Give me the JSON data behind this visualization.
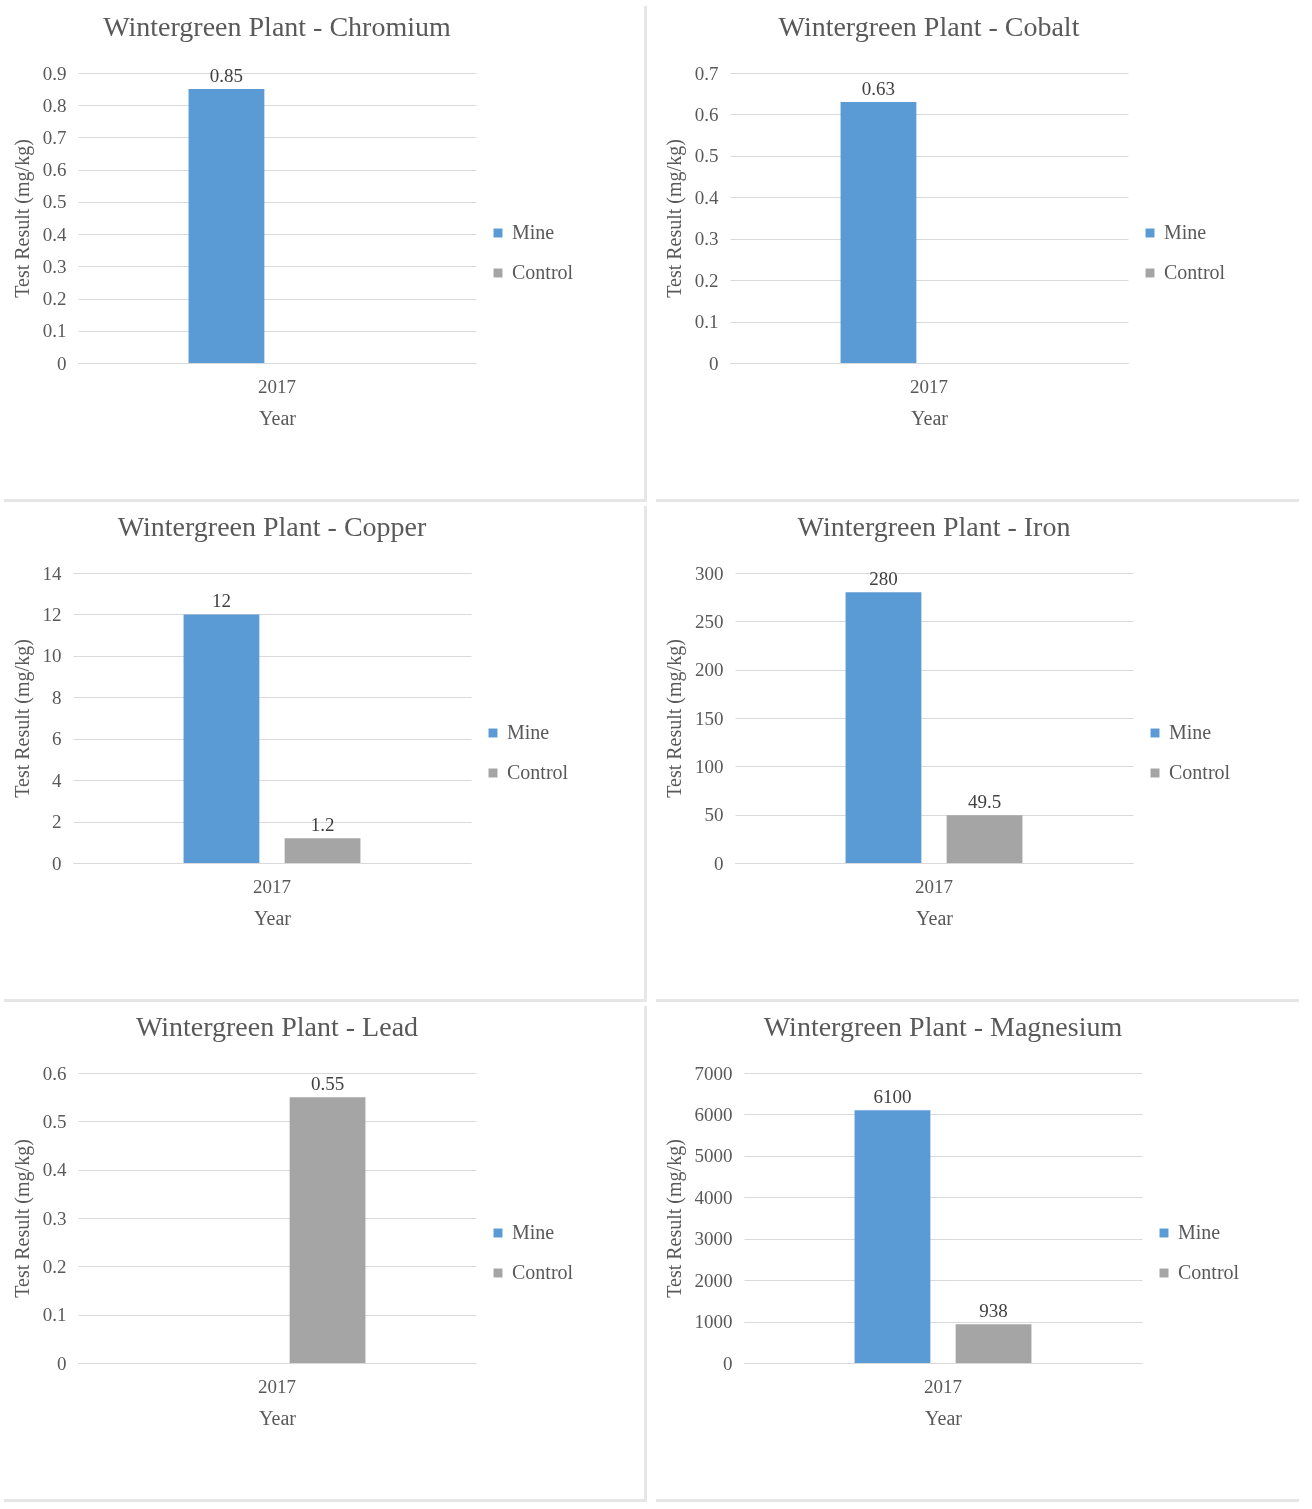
{
  "chart_data": [
    {
      "type": "bar",
      "title": "Wintergreen Plant - Chromium",
      "xlabel": "Year",
      "ylabel": "Test Result (mg/kg)",
      "categories": [
        "2017"
      ],
      "series": [
        {
          "name": "Mine",
          "color": "#5b9bd5",
          "values": [
            0.85
          ]
        },
        {
          "name": "Control",
          "color": "#a5a5a5",
          "values": [
            null
          ]
        }
      ],
      "ylim": [
        0,
        0.9
      ],
      "yticks": [
        0,
        0.1,
        0.2,
        0.3,
        0.4,
        0.5,
        0.6,
        0.7,
        0.8,
        0.9
      ],
      "grid": "y",
      "legend": "right",
      "data_labels": true
    },
    {
      "type": "bar",
      "title": "Wintergreen Plant - Cobalt",
      "xlabel": "Year",
      "ylabel": "Test Result (mg/kg)",
      "categories": [
        "2017"
      ],
      "series": [
        {
          "name": "Mine",
          "color": "#5b9bd5",
          "values": [
            0.63
          ]
        },
        {
          "name": "Control",
          "color": "#a5a5a5",
          "values": [
            null
          ]
        }
      ],
      "ylim": [
        0,
        0.7
      ],
      "yticks": [
        0,
        0.1,
        0.2,
        0.3,
        0.4,
        0.5,
        0.6,
        0.7
      ],
      "grid": "y",
      "legend": "right",
      "data_labels": true
    },
    {
      "type": "bar",
      "title": "Wintergreen Plant - Copper",
      "xlabel": "Year",
      "ylabel": "Test Result (mg/kg)",
      "categories": [
        "2017"
      ],
      "series": [
        {
          "name": "Mine",
          "color": "#5b9bd5",
          "values": [
            12
          ]
        },
        {
          "name": "Control",
          "color": "#a5a5a5",
          "values": [
            1.2
          ]
        }
      ],
      "ylim": [
        0,
        14
      ],
      "yticks": [
        0,
        2,
        4,
        6,
        8,
        10,
        12,
        14
      ],
      "grid": "y",
      "legend": "right",
      "data_labels": true
    },
    {
      "type": "bar",
      "title": "Wintergreen Plant - Iron",
      "xlabel": "Year",
      "ylabel": "Test Result (mg/kg)",
      "categories": [
        "2017"
      ],
      "series": [
        {
          "name": "Mine",
          "color": "#5b9bd5",
          "values": [
            280
          ]
        },
        {
          "name": "Control",
          "color": "#a5a5a5",
          "values": [
            49.5
          ]
        }
      ],
      "ylim": [
        0,
        300
      ],
      "yticks": [
        0,
        50,
        100,
        150,
        200,
        250,
        300
      ],
      "grid": "y",
      "legend": "right",
      "data_labels": true
    },
    {
      "type": "bar",
      "title": "Wintergreen Plant - Lead",
      "xlabel": "Year",
      "ylabel": "Test Result (mg/kg)",
      "categories": [
        "2017"
      ],
      "series": [
        {
          "name": "Mine",
          "color": "#5b9bd5",
          "values": [
            null
          ]
        },
        {
          "name": "Control",
          "color": "#a5a5a5",
          "values": [
            0.55
          ]
        }
      ],
      "ylim": [
        0,
        0.6
      ],
      "yticks": [
        0,
        0.1,
        0.2,
        0.3,
        0.4,
        0.5,
        0.6
      ],
      "grid": "y",
      "legend": "right",
      "data_labels": true
    },
    {
      "type": "bar",
      "title": "Wintergreen Plant - Magnesium",
      "xlabel": "Year",
      "ylabel": "Test Result (mg/kg)",
      "categories": [
        "2017"
      ],
      "series": [
        {
          "name": "Mine",
          "color": "#5b9bd5",
          "values": [
            6100
          ]
        },
        {
          "name": "Control",
          "color": "#a5a5a5",
          "values": [
            938
          ]
        }
      ],
      "ylim": [
        0,
        7000
      ],
      "yticks": [
        0,
        1000,
        2000,
        3000,
        4000,
        5000,
        6000,
        7000
      ],
      "grid": "y",
      "legend": "right",
      "data_labels": true
    }
  ]
}
